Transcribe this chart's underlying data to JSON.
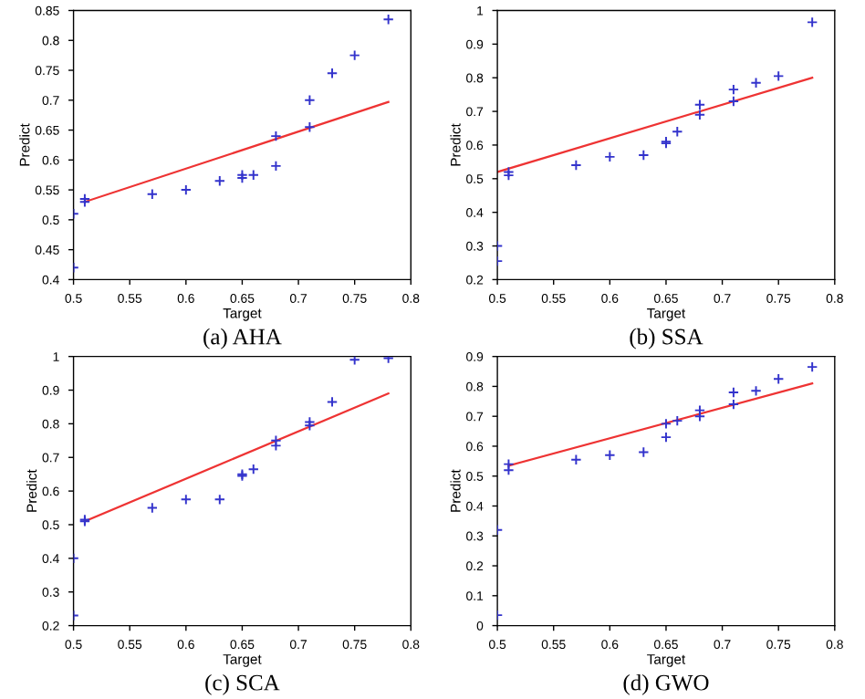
{
  "chart_data": [
    {
      "type": "scatter",
      "title": "(a) AHA",
      "xlabel": "Target",
      "ylabel": "Predict",
      "xlim": [
        0.5,
        0.8
      ],
      "ylim": [
        0.4,
        0.85
      ],
      "xticks": [
        0.5,
        0.55,
        0.6,
        0.65,
        0.7,
        0.75,
        0.8
      ],
      "yticks": [
        0.4,
        0.45,
        0.5,
        0.55,
        0.6,
        0.65,
        0.7,
        0.75,
        0.8,
        0.85
      ],
      "marker": "cross",
      "grid": false,
      "series": [
        {
          "color": "#3333cc",
          "x": [
            0.5,
            0.5,
            0.51,
            0.51,
            0.57,
            0.6,
            0.63,
            0.65,
            0.65,
            0.66,
            0.68,
            0.68,
            0.71,
            0.71,
            0.73,
            0.75,
            0.78
          ],
          "values": [
            0.42,
            0.51,
            0.53,
            0.535,
            0.543,
            0.55,
            0.565,
            0.57,
            0.575,
            0.575,
            0.59,
            0.64,
            0.655,
            0.7,
            0.745,
            0.775,
            0.835
          ]
        },
        {
          "type": "line",
          "marker": "none",
          "color": "#ee3333",
          "x": [
            0.51,
            0.78
          ],
          "values": [
            0.53,
            0.697
          ]
        }
      ]
    },
    {
      "type": "scatter",
      "title": "(b) SSA",
      "xlabel": "Target",
      "ylabel": "Predict",
      "xlim": [
        0.5,
        0.8
      ],
      "ylim": [
        0.2,
        1
      ],
      "xticks": [
        0.5,
        0.55,
        0.6,
        0.65,
        0.7,
        0.75,
        0.8
      ],
      "yticks": [
        0.2,
        0.3,
        0.4,
        0.5,
        0.6,
        0.7,
        0.8,
        0.9,
        1
      ],
      "marker": "cross",
      "grid": false,
      "series": [
        {
          "color": "#3333cc",
          "x": [
            0.5,
            0.5,
            0.51,
            0.51,
            0.57,
            0.6,
            0.63,
            0.65,
            0.65,
            0.66,
            0.68,
            0.68,
            0.71,
            0.71,
            0.73,
            0.75,
            0.78
          ],
          "values": [
            0.255,
            0.3,
            0.51,
            0.52,
            0.54,
            0.565,
            0.57,
            0.605,
            0.61,
            0.64,
            0.69,
            0.72,
            0.73,
            0.765,
            0.785,
            0.805,
            0.965
          ]
        },
        {
          "type": "line",
          "marker": "none",
          "color": "#ee3333",
          "x": [
            0.5,
            0.78
          ],
          "values": [
            0.52,
            0.8
          ]
        }
      ]
    },
    {
      "type": "scatter",
      "title": "(c) SCA",
      "xlabel": "Target",
      "ylabel": "Predict",
      "xlim": [
        0.5,
        0.8
      ],
      "ylim": [
        0.2,
        1
      ],
      "xticks": [
        0.5,
        0.55,
        0.6,
        0.65,
        0.7,
        0.75,
        0.8
      ],
      "yticks": [
        0.2,
        0.3,
        0.4,
        0.5,
        0.6,
        0.7,
        0.8,
        0.9,
        1
      ],
      "marker": "cross",
      "grid": false,
      "series": [
        {
          "color": "#3333cc",
          "x": [
            0.5,
            0.5,
            0.51,
            0.51,
            0.57,
            0.6,
            0.63,
            0.65,
            0.65,
            0.66,
            0.68,
            0.68,
            0.71,
            0.71,
            0.73,
            0.75,
            0.78
          ],
          "values": [
            0.23,
            0.4,
            0.51,
            0.515,
            0.55,
            0.575,
            0.575,
            0.645,
            0.65,
            0.665,
            0.735,
            0.75,
            0.795,
            0.805,
            0.865,
            0.99,
            0.995
          ]
        },
        {
          "type": "line",
          "marker": "none",
          "color": "#ee3333",
          "x": [
            0.51,
            0.78
          ],
          "values": [
            0.51,
            0.89
          ]
        }
      ]
    },
    {
      "type": "scatter",
      "title": "(d) GWO",
      "xlabel": "Target",
      "ylabel": "Predict",
      "xlim": [
        0.5,
        0.8
      ],
      "ylim": [
        0,
        0.9
      ],
      "xticks": [
        0.5,
        0.55,
        0.6,
        0.65,
        0.7,
        0.75,
        0.8
      ],
      "yticks": [
        0,
        0.1,
        0.2,
        0.3,
        0.4,
        0.5,
        0.6,
        0.7,
        0.8,
        0.9
      ],
      "marker": "cross",
      "grid": false,
      "series": [
        {
          "color": "#3333cc",
          "x": [
            0.5,
            0.5,
            0.51,
            0.51,
            0.57,
            0.6,
            0.63,
            0.65,
            0.65,
            0.66,
            0.68,
            0.68,
            0.71,
            0.71,
            0.73,
            0.75,
            0.78
          ],
          "values": [
            0.035,
            0.32,
            0.52,
            0.54,
            0.555,
            0.57,
            0.58,
            0.63,
            0.675,
            0.685,
            0.7,
            0.72,
            0.74,
            0.78,
            0.785,
            0.825,
            0.865
          ]
        },
        {
          "type": "line",
          "marker": "none",
          "color": "#ee3333",
          "x": [
            0.51,
            0.78
          ],
          "values": [
            0.535,
            0.81
          ]
        }
      ]
    }
  ]
}
